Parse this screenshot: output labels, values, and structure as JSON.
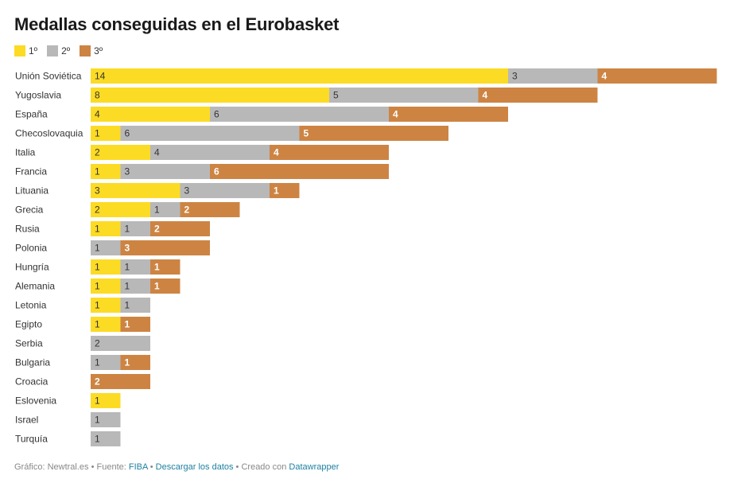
{
  "chart_data": {
    "type": "bar",
    "orientation": "horizontal",
    "stacked": true,
    "title": "Medallas conseguidas en el Eurobasket",
    "categories": [
      "Unión Soviética",
      "Yugoslavia",
      "España",
      "Checoslovaquia",
      "Italia",
      "Francia",
      "Lituania",
      "Grecia",
      "Rusia",
      "Polonia",
      "Hungría",
      "Alemania",
      "Letonia",
      "Egipto",
      "Serbia",
      "Bulgaria",
      "Croacia",
      "Eslovenia",
      "Israel",
      "Turquía"
    ],
    "series": [
      {
        "name": "1º",
        "color": "#fcdb24",
        "label_color": "#333333",
        "label_bold": false,
        "values": [
          14,
          8,
          4,
          1,
          2,
          1,
          3,
          2,
          1,
          0,
          1,
          1,
          1,
          1,
          0,
          0,
          0,
          1,
          0,
          0
        ]
      },
      {
        "name": "2º",
        "color": "#b8b8b8",
        "label_color": "#333333",
        "label_bold": false,
        "values": [
          3,
          5,
          6,
          6,
          4,
          3,
          3,
          1,
          1,
          1,
          1,
          1,
          1,
          0,
          2,
          1,
          0,
          0,
          1,
          1
        ]
      },
      {
        "name": "3º",
        "color": "#cd8443",
        "label_color": "#ffffff",
        "label_bold": true,
        "values": [
          4,
          4,
          4,
          5,
          4,
          6,
          1,
          2,
          2,
          3,
          1,
          1,
          0,
          1,
          0,
          1,
          2,
          0,
          0,
          0
        ]
      }
    ],
    "xlim": [
      0,
      21
    ],
    "legend": "top-left",
    "grid": false
  },
  "footer": {
    "prefix": "Gráfico: Newtral.es • Fuente: ",
    "source_link": "FIBA",
    "sep1": " • ",
    "download_link": "Descargar los datos",
    "sep2": " • Creado con ",
    "tool_link": "Datawrapper"
  }
}
